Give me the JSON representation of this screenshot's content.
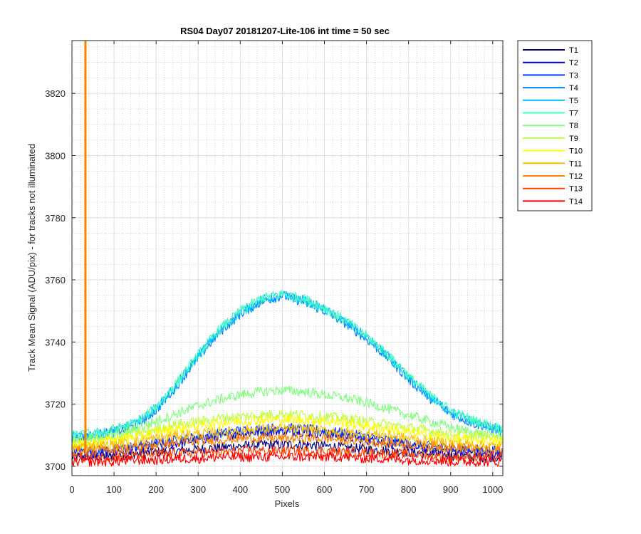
{
  "chart_data": {
    "type": "line",
    "title": "RS04 Day07 20181207-Lite-106 int time = 50 sec",
    "xlabel": "Pixels",
    "ylabel": "Track Mean Signal (ADU/pix) - for tracks not illuminated",
    "xlim": [
      0,
      1024
    ],
    "ylim": [
      3697,
      3837
    ],
    "xticks": [
      0,
      100,
      200,
      300,
      400,
      500,
      600,
      700,
      800,
      900,
      1000
    ],
    "yticks": [
      3700,
      3720,
      3740,
      3760,
      3780,
      3800,
      3820
    ],
    "grid": true,
    "minor_grid": true,
    "legend_placement": "outside-right-top",
    "x": [
      0,
      50,
      100,
      150,
      200,
      250,
      300,
      350,
      400,
      450,
      500,
      550,
      600,
      650,
      700,
      750,
      800,
      850,
      900,
      950,
      1000,
      1023
    ],
    "series": [
      {
        "name": "T1",
        "color": "#00008F",
        "values": [
          3703,
          3703,
          3703.5,
          3704,
          3704.5,
          3705,
          3705.5,
          3706,
          3706.5,
          3707,
          3707,
          3707,
          3706.5,
          3706,
          3705.5,
          3705,
          3704.5,
          3704,
          3703.5,
          3703,
          3703,
          3703
        ]
      },
      {
        "name": "T2",
        "color": "#0000D9",
        "values": [
          3704,
          3704,
          3704.5,
          3705.5,
          3706.5,
          3707.5,
          3708.5,
          3709.5,
          3710.5,
          3711,
          3711.5,
          3711,
          3710.5,
          3709.5,
          3708.5,
          3707.5,
          3706.5,
          3705.5,
          3705,
          3704.5,
          3704,
          3704
        ]
      },
      {
        "name": "T3",
        "color": "#0040FF",
        "values": [
          3705,
          3705,
          3705.5,
          3706.5,
          3707.5,
          3708.5,
          3709.5,
          3710.5,
          3711.5,
          3712,
          3712.5,
          3712,
          3711.5,
          3710.5,
          3709.5,
          3708.5,
          3707.5,
          3706.5,
          3706,
          3705.5,
          3705,
          3705
        ]
      },
      {
        "name": "T4",
        "color": "#0080FF",
        "values": [
          3709,
          3710,
          3711,
          3713,
          3718,
          3726,
          3735,
          3743,
          3749,
          3753,
          3755,
          3753,
          3750,
          3746,
          3741,
          3735,
          3728,
          3722,
          3717,
          3714,
          3712,
          3711
        ]
      },
      {
        "name": "T5",
        "color": "#00BFFF",
        "values": [
          3709.5,
          3710,
          3711.5,
          3713.5,
          3718.5,
          3726.5,
          3735.5,
          3743.5,
          3749.5,
          3753.5,
          3755,
          3753.5,
          3750.5,
          3746.5,
          3741.5,
          3735.5,
          3728.5,
          3722.5,
          3717.5,
          3714.5,
          3712.5,
          3711.5
        ]
      },
      {
        "name": "T7",
        "color": "#40FFBF",
        "values": [
          3710,
          3710.5,
          3712,
          3714,
          3719,
          3727,
          3736,
          3744,
          3750,
          3754,
          3755.5,
          3754,
          3751,
          3747,
          3742,
          3736,
          3729,
          3723,
          3718,
          3715,
          3713,
          3712
        ]
      },
      {
        "name": "T8",
        "color": "#80FF80",
        "values": [
          3708,
          3709,
          3710,
          3712,
          3714.5,
          3717,
          3719.5,
          3721.5,
          3723,
          3724,
          3724.5,
          3724,
          3723,
          3722,
          3720.5,
          3718.5,
          3716.5,
          3714.5,
          3712.5,
          3711,
          3710,
          3709.5
        ]
      },
      {
        "name": "T9",
        "color": "#BFFF40",
        "values": [
          3707.5,
          3708,
          3709,
          3710.5,
          3712,
          3713.5,
          3714.5,
          3715.5,
          3716,
          3716.5,
          3717,
          3716.5,
          3716,
          3715.5,
          3714.5,
          3713.5,
          3712.5,
          3711.5,
          3710.5,
          3710,
          3709.5,
          3709
        ]
      },
      {
        "name": "T10",
        "color": "#FFFF00",
        "values": [
          3707,
          3707.5,
          3708.5,
          3709.5,
          3711,
          3712,
          3713,
          3714,
          3714.5,
          3715,
          3715,
          3715,
          3714.5,
          3714,
          3713,
          3712,
          3711,
          3710,
          3709,
          3708.5,
          3708,
          3708
        ]
      },
      {
        "name": "T11",
        "color": "#FFBF00",
        "values": [
          3706,
          3706.5,
          3707,
          3708,
          3709,
          3710,
          3710.5,
          3711,
          3711.5,
          3712,
          3712,
          3712,
          3711.5,
          3711,
          3710.5,
          3710,
          3709,
          3708,
          3707.5,
          3707,
          3706.5,
          3706.5
        ]
      },
      {
        "name": "T12",
        "color": "#FF8000",
        "values": [
          3705,
          3705,
          3705.5,
          3706,
          3707,
          3707.5,
          3708,
          3708.5,
          3709,
          3709,
          3709,
          3709,
          3709,
          3708.5,
          3708,
          3707.5,
          3707,
          3706.5,
          3706,
          3705.5,
          3705,
          3705
        ]
      },
      {
        "name": "T13",
        "color": "#FF4000",
        "values": [
          3703,
          3703,
          3703,
          3703.5,
          3704,
          3704,
          3704.5,
          3704.5,
          3705,
          3705,
          3705,
          3705,
          3705,
          3704.5,
          3704.5,
          3704,
          3704,
          3703.5,
          3703,
          3703,
          3703,
          3703
        ]
      },
      {
        "name": "T14",
        "color": "#FF0000",
        "values": [
          3701.5,
          3701.5,
          3701.5,
          3702,
          3702,
          3702.5,
          3702.5,
          3703,
          3703,
          3703,
          3703,
          3703,
          3703,
          3703,
          3702.5,
          3702.5,
          3702,
          3702,
          3701.5,
          3701.5,
          3701.5,
          3701.5
        ]
      }
    ],
    "annotations": [
      {
        "type": "vertical_spike",
        "series": "T12",
        "x": 32,
        "y_from": 3704,
        "y_to": 3837
      }
    ]
  }
}
